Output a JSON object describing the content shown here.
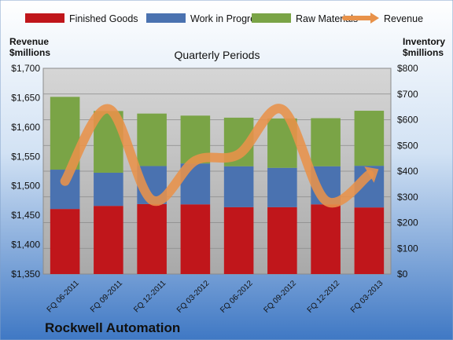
{
  "colors": {
    "finished_goods": "#c0161b",
    "work_in_progress": "#4a72b0",
    "raw_materials": "#7aa446",
    "revenue": "#e8924a"
  },
  "legend": {
    "finished_goods": "Finished Goods",
    "work_in_progress": "Work in Progress",
    "raw_materials": "Raw Materials",
    "revenue": "Revenue"
  },
  "footer": {
    "company": "Rockwell Automation"
  },
  "chart_data": {
    "type": "bar",
    "subtype": "stacked bar with line overlay",
    "title": "Quarterly Periods",
    "left_axis_label": [
      "Revenue",
      "$millions"
    ],
    "right_axis_label": [
      "Inventory",
      "$millions"
    ],
    "left_ylim": [
      1350,
      1700
    ],
    "right_ylim": [
      0,
      800
    ],
    "left_ticks": [
      "$1,350",
      "$1,400",
      "$1,450",
      "$1,500",
      "$1,550",
      "$1,600",
      "$1,650",
      "$1,700"
    ],
    "right_ticks": [
      "$0",
      "$100",
      "$200",
      "$300",
      "$400",
      "$500",
      "$600",
      "$700",
      "$800"
    ],
    "grid": true,
    "legend_position": "top",
    "categories": [
      "FQ 06-2011",
      "FQ 09-2011",
      "FQ 12-2011",
      "FQ 03-2012",
      "FQ 06-2012",
      "FQ 09-2012",
      "FQ 12-2012",
      "FQ 03-2013"
    ],
    "series": [
      {
        "name": "Finished Goods",
        "axis": "right",
        "values": [
          253,
          265,
          272,
          271,
          260,
          260,
          271,
          259
        ]
      },
      {
        "name": "Work in Progress",
        "axis": "right",
        "values": [
          153,
          129,
          148,
          159,
          159,
          153,
          148,
          162
        ]
      },
      {
        "name": "Raw Materials",
        "axis": "right",
        "values": [
          283,
          240,
          204,
          186,
          189,
          192,
          187,
          214
        ]
      },
      {
        "name": "Revenue",
        "axis": "left",
        "type": "line",
        "values": [
          1508,
          1631,
          1476,
          1543,
          1554,
          1630,
          1475,
          1519
        ]
      }
    ]
  }
}
